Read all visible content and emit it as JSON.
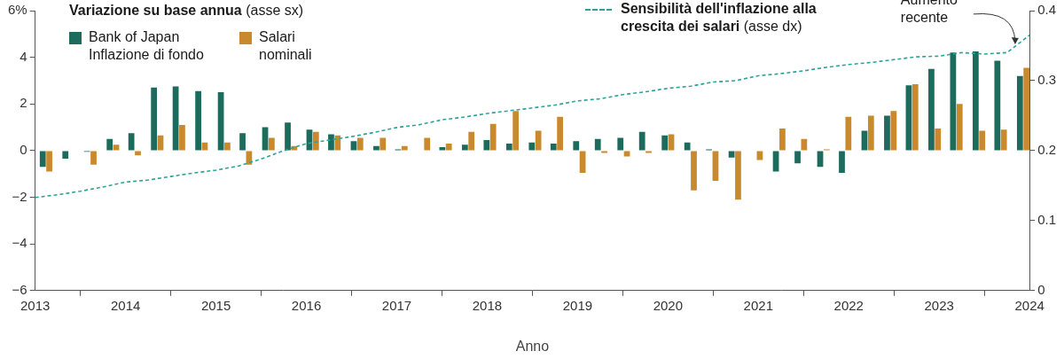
{
  "chart_data": {
    "type": "bar",
    "y_label": "Variazione su base annua (asse sx)",
    "x_label": "Anno",
    "legend": "top-left",
    "grid": false,
    "xlim": [
      2013,
      2024
    ],
    "xticks": [
      2013,
      2014,
      2015,
      2016,
      2017,
      2018,
      2019,
      2020,
      2021,
      2022,
      2023,
      2024
    ],
    "ylim": [
      -6,
      6
    ],
    "yticks": [
      {
        "value": -6,
        "label": "−6"
      },
      {
        "value": -4,
        "label": "−4"
      },
      {
        "value": -2,
        "label": "−2"
      },
      0,
      2,
      4,
      {
        "value": 6,
        "label": "6%"
      }
    ],
    "y2lim": [
      0,
      0.4
    ],
    "y2ticks": [
      0,
      0.1,
      0.2,
      0.3,
      0.4
    ],
    "series": [
      {
        "name": "Bank of Japan Inflazione di fondo",
        "type": "bar",
        "color": "#1c6b5d",
        "x": [
          2013.12,
          2013.37,
          2013.61,
          2013.86,
          2014.1,
          2014.35,
          2014.59,
          2014.84,
          2015.09,
          2015.33,
          2015.58,
          2015.83,
          2016.07,
          2016.31,
          2016.56,
          2016.81,
          2017.05,
          2017.3,
          2017.54,
          2017.79,
          2018.03,
          2018.28,
          2018.53,
          2018.77,
          2019.02,
          2019.26,
          2019.51,
          2019.75,
          2020.0,
          2020.25,
          2020.49,
          2020.74,
          2020.98,
          2021.23,
          2021.47,
          2021.72,
          2021.96,
          2022.21,
          2022.46,
          2022.7,
          2022.95,
          2023.19,
          2023.44,
          2023.68,
          2023.93
        ],
        "values": [
          -0.7,
          -0.35,
          -0.05,
          0.5,
          0.75,
          2.7,
          2.75,
          2.55,
          2.5,
          0.75,
          1.0,
          1.2,
          0.9,
          0.7,
          0.4,
          0.2,
          0.05,
          0.0,
          0.15,
          0.25,
          0.45,
          0.3,
          0.35,
          0.3,
          0.4,
          0.5,
          0.55,
          0.8,
          0.65,
          0.35,
          0.05,
          -0.3,
          0.0,
          -0.9,
          -0.55,
          -0.7,
          -0.95,
          0.85,
          1.5,
          2.8,
          3.5,
          4.2,
          4.25,
          3.85,
          3.2
        ]
      },
      {
        "name": "Salari nominali",
        "type": "bar",
        "color": "#c98a2e",
        "x": [
          2013.12,
          2013.37,
          2013.61,
          2013.86,
          2014.1,
          2014.35,
          2014.59,
          2014.84,
          2015.09,
          2015.33,
          2015.58,
          2015.83,
          2016.07,
          2016.31,
          2016.56,
          2016.81,
          2017.05,
          2017.3,
          2017.54,
          2017.79,
          2018.03,
          2018.28,
          2018.53,
          2018.77,
          2019.02,
          2019.26,
          2019.51,
          2019.75,
          2020.0,
          2020.25,
          2020.49,
          2020.74,
          2020.98,
          2021.23,
          2021.47,
          2021.72,
          2021.96,
          2022.21,
          2022.46,
          2022.7,
          2022.95,
          2023.19,
          2023.44,
          2023.68,
          2023.93
        ],
        "values": [
          -0.9,
          0.0,
          -0.6,
          0.25,
          -0.2,
          0.65,
          1.1,
          0.35,
          0.35,
          -0.6,
          0.55,
          0.2,
          0.8,
          0.65,
          0.55,
          0.55,
          0.2,
          0.55,
          0.3,
          0.8,
          1.15,
          1.7,
          0.85,
          1.45,
          -0.95,
          -0.1,
          -0.25,
          -0.1,
          0.7,
          -1.7,
          -1.3,
          -2.1,
          -0.4,
          0.95,
          0.5,
          0.05,
          1.45,
          1.5,
          1.7,
          2.85,
          0.95,
          2.0,
          0.85,
          0.9,
          3.55
        ]
      },
      {
        "name": "Sensibilità dell'inflazione alla crescita dei salari (asse dx)",
        "type": "line",
        "axis": "y2",
        "color": "#2ba39a",
        "line_style": "dashed",
        "marker": "none",
        "x": [
          2013,
          2013.25,
          2013.5,
          2013.75,
          2014,
          2014.25,
          2014.5,
          2014.75,
          2015,
          2015.25,
          2015.5,
          2015.75,
          2016,
          2016.25,
          2016.5,
          2016.75,
          2017,
          2017.25,
          2017.5,
          2017.75,
          2018,
          2018.25,
          2018.5,
          2018.75,
          2019,
          2019.25,
          2019.5,
          2019.75,
          2020,
          2020.25,
          2020.5,
          2020.75,
          2021,
          2021.25,
          2021.5,
          2021.75,
          2022,
          2022.25,
          2022.5,
          2022.75,
          2023,
          2023.25,
          2023.5,
          2023.75,
          2024
        ],
        "values": [
          0.133,
          0.137,
          0.142,
          0.148,
          0.155,
          0.158,
          0.163,
          0.168,
          0.172,
          0.178,
          0.188,
          0.2,
          0.21,
          0.215,
          0.22,
          0.226,
          0.233,
          0.237,
          0.244,
          0.248,
          0.253,
          0.257,
          0.261,
          0.265,
          0.271,
          0.274,
          0.28,
          0.284,
          0.289,
          0.292,
          0.298,
          0.3,
          0.307,
          0.31,
          0.314,
          0.319,
          0.323,
          0.326,
          0.33,
          0.334,
          0.335,
          0.34,
          0.338,
          0.34,
          0.365
        ]
      }
    ],
    "annotations": [
      {
        "text": "Aumento recente",
        "x": 2023.85,
        "y": 0.352,
        "axis": "y2"
      }
    ]
  }
}
